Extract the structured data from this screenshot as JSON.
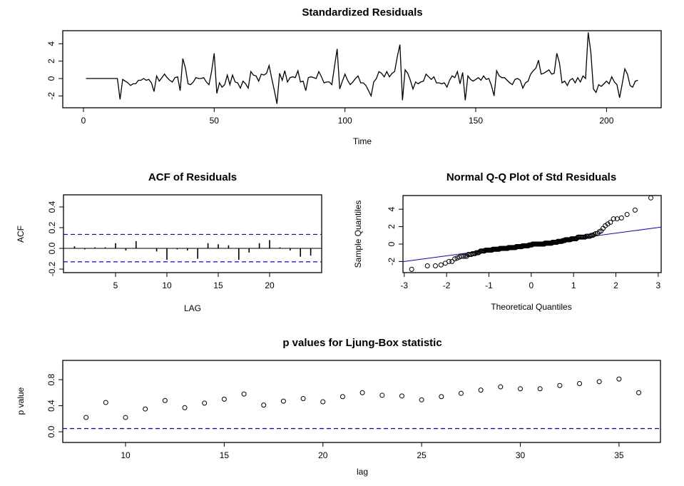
{
  "chart_data": [
    {
      "type": "line",
      "title": "Standardized Residuals",
      "xlabel": "Time",
      "ylabel": "",
      "xlim": [
        -7.9,
        220.9
      ],
      "ylim": [
        -3.36,
        5.5
      ],
      "xticks": [
        0,
        50,
        100,
        150,
        200
      ],
      "yticks": [
        -2,
        0,
        2,
        4
      ],
      "x_start": 1,
      "values": [
        0,
        0,
        0,
        0,
        0,
        0,
        0,
        0,
        0,
        0,
        0,
        0,
        0,
        -2.4,
        -0.1,
        -0.3,
        -0.5,
        -0.8,
        -0.6,
        -0.6,
        -0.2,
        -0.2,
        0.0,
        -0.2,
        -0.1,
        -0.5,
        -1.5,
        0.3,
        -0.3,
        0.1,
        0.5,
        0.1,
        -0.2,
        -0.4,
        0.1,
        0.2,
        -1.4,
        2.3,
        1.2,
        -0.6,
        -0.7,
        -0.4,
        0.1,
        0.0,
        0.0,
        0.1,
        -0.4,
        -0.7,
        0.8,
        2.9,
        -1.7,
        -0.5,
        -1.0,
        -0.7,
        0.4,
        -0.7,
        0.4,
        -0.4,
        -0.5,
        -1.1,
        -0.3,
        -0.6,
        -1.1,
        0.8,
        0.4,
        0.3,
        -0.3,
        0.5,
        0.4,
        0.6,
        1.5,
        0.0,
        -1.4,
        -2.9,
        0.6,
        -0.2,
        0.9,
        -0.4,
        0.1,
        0.2,
        0.1,
        0.9,
        -0.4,
        -0.3,
        -1.4,
        0.1,
        0.2,
        0.1,
        0.0,
        0.8,
        0.2,
        -0.5,
        -0.4,
        -0.4,
        -0.7,
        1.4,
        3.4,
        -1.2,
        -0.3,
        0.5,
        -0.2,
        -0.7,
        -0.4,
        0.0,
        0.3,
        -0.5,
        -0.5,
        -0.8,
        -1.4,
        -2.0,
        -0.4,
        0.0,
        0.8,
        0.6,
        0.2,
        0.8,
        0.2,
        0.6,
        0.8,
        2.5,
        3.9,
        -2.5,
        1.0,
        0.6,
        -0.2,
        -1.2,
        -0.4,
        -0.6,
        -0.4,
        -0.3,
        0.5,
        0.2,
        -0.1,
        0.2,
        -0.5,
        -0.5,
        -0.6,
        -0.5,
        -1.0,
        -0.2,
        0.3,
        0.1,
        0.8,
        -0.6,
        0.7,
        -2.5,
        0.3,
        -0.1,
        -0.3,
        -0.1,
        0.1,
        -0.2,
        0.3,
        -0.1,
        0.0,
        -0.8,
        -2.0,
        0.9,
        0.3,
        0.1,
        0.1,
        -0.2,
        -0.5,
        -0.7,
        -0.1,
        0.0,
        -0.2,
        -1.1,
        -0.5,
        -0.3,
        0.5,
        0.9,
        1.2,
        2.1,
        0.5,
        0.6,
        0.8,
        1.0,
        0.5,
        0.6,
        2.9,
        1.8,
        -0.5,
        -0.3,
        -0.8,
        -0.2,
        0.0,
        -0.5,
        0.1,
        -0.4,
        0.3,
        0.0,
        5.3,
        3.0,
        -1.2,
        -1.6,
        -0.7,
        -0.9,
        -0.6,
        -0.3,
        -0.6,
        0.2,
        -0.4,
        -0.7,
        -2.2,
        -0.6,
        1.1,
        0.5,
        -0.8,
        -1.0,
        -0.3,
        -0.2
      ]
    },
    {
      "type": "bar",
      "title": "ACF of Residuals",
      "xlabel": "LAG",
      "ylabel": "ACF",
      "xlim": [
        -0.07,
        25.07
      ],
      "ylim": [
        -0.234,
        0.517
      ],
      "xticks": [
        5,
        10,
        15,
        20
      ],
      "yticks": [
        -0.2,
        0.0,
        0.2,
        0.4
      ],
      "ytick_labels": [
        "-0.2",
        "0.0",
        "0.2",
        "0.4"
      ],
      "lags": [
        1,
        2,
        3,
        4,
        5,
        6,
        7,
        8,
        9,
        10,
        11,
        12,
        13,
        14,
        15,
        16,
        17,
        18,
        19,
        20,
        21,
        22,
        23,
        24
      ],
      "values": [
        0.02,
        -0.01,
        0.01,
        0.01,
        0.05,
        -0.02,
        0.07,
        0.0,
        -0.03,
        -0.11,
        -0.01,
        -0.02,
        -0.1,
        0.05,
        0.04,
        0.03,
        -0.11,
        -0.04,
        0.05,
        0.08,
        0.01,
        -0.02,
        -0.08,
        -0.07
      ],
      "conf_limits": [
        0.135,
        -0.13
      ],
      "conf_color": "#0000ff"
    },
    {
      "type": "scatter",
      "title": "Normal Q-Q Plot of Std Residuals",
      "xlabel": "Theoretical Quantiles",
      "ylabel": "Sample Quantiles",
      "xlim": [
        -3.03,
        3.07
      ],
      "ylim": [
        -3.28,
        5.57
      ],
      "xticks": [
        -3,
        -2,
        -1,
        0,
        1,
        2,
        3
      ],
      "yticks": [
        -2,
        0,
        2,
        4
      ],
      "sample": "sorted standardized residuals",
      "qq_line": {
        "intercept": -0.05,
        "slope": 0.65,
        "color": "#0000ff"
      }
    },
    {
      "type": "scatter",
      "title": "p values for Ljung-Box statistic",
      "xlabel": "lag",
      "ylabel": "p value",
      "xlim": [
        6.82,
        37.1
      ],
      "ylim": [
        -0.164,
        1.096
      ],
      "xticks": [
        10,
        15,
        20,
        25,
        30,
        35
      ],
      "yticks": [
        0.0,
        0.4,
        0.8
      ],
      "ytick_labels": [
        "0.0",
        "0.4",
        "0.8"
      ],
      "x": [
        8,
        9,
        10,
        11,
        12,
        13,
        14,
        15,
        16,
        17,
        18,
        19,
        20,
        21,
        22,
        23,
        24,
        25,
        26,
        27,
        28,
        29,
        30,
        31,
        32,
        33,
        34,
        35,
        36
      ],
      "values": [
        0.22,
        0.45,
        0.22,
        0.35,
        0.48,
        0.37,
        0.44,
        0.5,
        0.58,
        0.41,
        0.47,
        0.51,
        0.46,
        0.54,
        0.6,
        0.56,
        0.55,
        0.49,
        0.54,
        0.59,
        0.64,
        0.69,
        0.66,
        0.66,
        0.71,
        0.74,
        0.77,
        0.81,
        0.6
      ],
      "threshold": 0.05,
      "threshold_color": "#0000ff"
    }
  ]
}
